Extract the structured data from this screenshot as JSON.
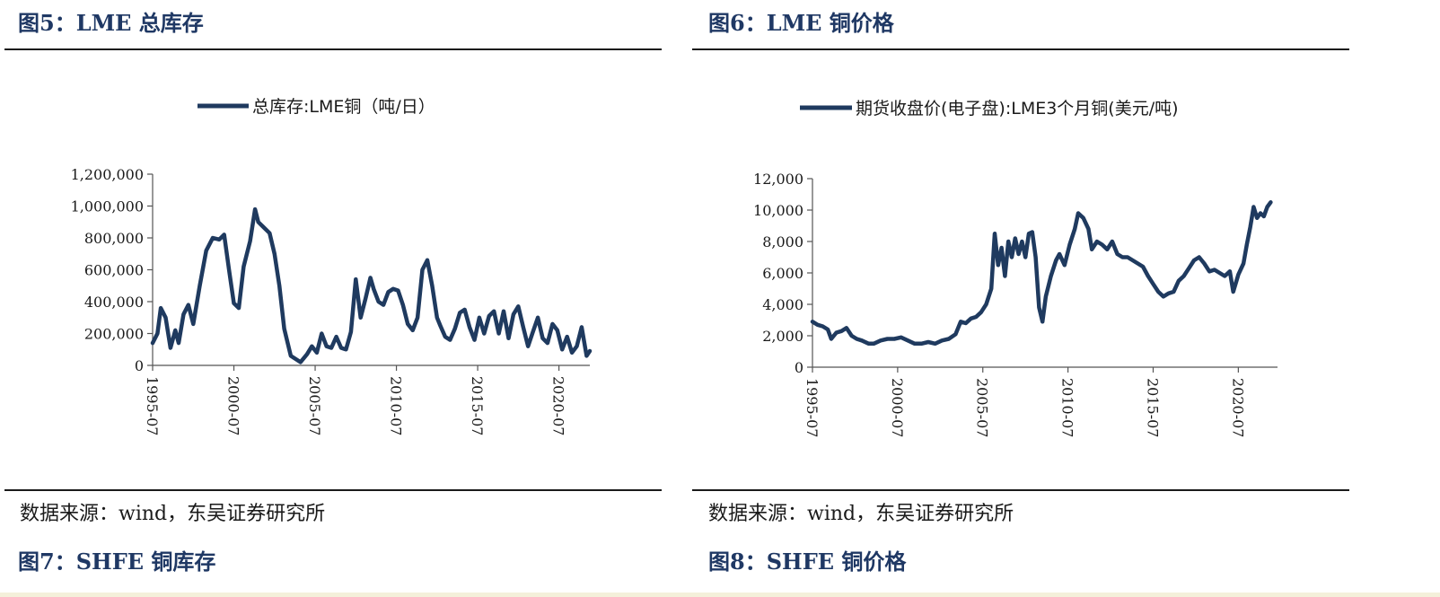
{
  "figures": [
    {
      "title": "图5：LME 总库存",
      "source": "数据来源：wind，东吴证券研究所"
    },
    {
      "title": "图6：LME 铜价格",
      "source": "数据来源：wind，东吴证券研究所"
    }
  ],
  "next_titles": [
    "图7：SHFE 铜库存",
    "图8：SHFE 铜价格"
  ],
  "series_color": "#1f3a5f",
  "chart_data": [
    {
      "type": "line",
      "title": "",
      "xlabel": "",
      "ylabel": "",
      "legend": "top-center",
      "grid": false,
      "ylim": [
        0,
        1200000
      ],
      "yticks": [
        0,
        200000,
        400000,
        600000,
        800000,
        1000000,
        1200000
      ],
      "ytick_labels": [
        "0",
        "200,000",
        "400,000",
        "600,000",
        "800,000",
        "1,000,000",
        "1,200,000"
      ],
      "xlim": [
        1995.5,
        2022.4
      ],
      "xticks": [
        1995.5,
        2000.5,
        2005.5,
        2010.5,
        2015.5,
        2020.5
      ],
      "xtick_labels": [
        "1995-07",
        "2000-07",
        "2005-07",
        "2010-07",
        "2015-07",
        "2020-07"
      ],
      "series": [
        {
          "name": "总库存:LME铜（吨/日）",
          "x": [
            1995.5,
            1995.8,
            1996.0,
            1996.3,
            1996.6,
            1996.9,
            1997.1,
            1997.4,
            1997.7,
            1998.0,
            1998.4,
            1998.8,
            1999.2,
            1999.6,
            1999.9,
            2000.2,
            2000.5,
            2000.8,
            2001.1,
            2001.5,
            2001.8,
            2002.0,
            2002.3,
            2002.7,
            2003.0,
            2003.3,
            2003.6,
            2004.0,
            2004.3,
            2004.6,
            2005.0,
            2005.3,
            2005.6,
            2005.9,
            2006.2,
            2006.5,
            2006.8,
            2007.1,
            2007.4,
            2007.7,
            2008.0,
            2008.3,
            2008.6,
            2008.9,
            2009.1,
            2009.4,
            2009.7,
            2010.0,
            2010.3,
            2010.6,
            2010.9,
            2011.2,
            2011.5,
            2011.8,
            2012.1,
            2012.4,
            2012.7,
            2013.0,
            2013.2,
            2013.5,
            2013.8,
            2014.1,
            2014.4,
            2014.7,
            2015.0,
            2015.3,
            2015.6,
            2015.9,
            2016.2,
            2016.5,
            2016.8,
            2017.1,
            2017.4,
            2017.7,
            2018.0,
            2018.3,
            2018.6,
            2018.9,
            2019.2,
            2019.5,
            2019.8,
            2020.1,
            2020.4,
            2020.7,
            2021.0,
            2021.3,
            2021.6,
            2021.9,
            2022.2,
            2022.4
          ],
          "values": [
            140000,
            200000,
            360000,
            300000,
            110000,
            220000,
            140000,
            320000,
            380000,
            260000,
            500000,
            720000,
            800000,
            790000,
            820000,
            600000,
            390000,
            360000,
            620000,
            780000,
            980000,
            900000,
            870000,
            830000,
            700000,
            500000,
            230000,
            60000,
            40000,
            20000,
            70000,
            120000,
            80000,
            200000,
            120000,
            110000,
            180000,
            110000,
            100000,
            210000,
            540000,
            300000,
            420000,
            550000,
            480000,
            400000,
            380000,
            460000,
            480000,
            470000,
            380000,
            260000,
            220000,
            300000,
            600000,
            660000,
            500000,
            300000,
            250000,
            180000,
            160000,
            230000,
            330000,
            350000,
            240000,
            160000,
            300000,
            200000,
            310000,
            340000,
            200000,
            340000,
            170000,
            320000,
            370000,
            240000,
            120000,
            210000,
            300000,
            170000,
            140000,
            260000,
            220000,
            100000,
            180000,
            80000,
            120000,
            240000,
            60000,
            90000
          ]
        }
      ]
    },
    {
      "type": "line",
      "title": "",
      "xlabel": "",
      "ylabel": "",
      "legend": "top-center",
      "grid": false,
      "ylim": [
        0,
        12000
      ],
      "yticks": [
        0,
        2000,
        4000,
        6000,
        8000,
        10000,
        12000
      ],
      "ytick_labels": [
        "0",
        "2,000",
        "4,000",
        "6,000",
        "8,000",
        "10,000",
        "12,000"
      ],
      "xlim": [
        1995.5,
        2022.8
      ],
      "xticks": [
        1995.5,
        2000.5,
        2005.5,
        2010.5,
        2015.5,
        2020.5
      ],
      "xtick_labels": [
        "1995-07",
        "2000-07",
        "2005-07",
        "2010-07",
        "2015-07",
        "2020-07"
      ],
      "series": [
        {
          "name": "期货收盘价(电子盘):LME3个月铜(美元/吨)",
          "x": [
            1995.5,
            1995.8,
            1996.1,
            1996.4,
            1996.6,
            1996.9,
            1997.2,
            1997.5,
            1997.8,
            1998.1,
            1998.4,
            1998.8,
            1999.1,
            1999.5,
            1999.9,
            2000.3,
            2000.7,
            2001.1,
            2001.5,
            2001.9,
            2002.3,
            2002.7,
            2003.1,
            2003.5,
            2003.9,
            2004.2,
            2004.5,
            2004.8,
            2005.1,
            2005.4,
            2005.7,
            2006.0,
            2006.2,
            2006.4,
            2006.6,
            2006.8,
            2007.0,
            2007.2,
            2007.4,
            2007.6,
            2007.8,
            2008.0,
            2008.2,
            2008.4,
            2008.6,
            2008.8,
            2009.0,
            2009.2,
            2009.5,
            2009.8,
            2010.0,
            2010.3,
            2010.6,
            2010.9,
            2011.1,
            2011.4,
            2011.7,
            2011.9,
            2012.2,
            2012.5,
            2012.8,
            2013.1,
            2013.4,
            2013.7,
            2014.0,
            2014.3,
            2014.6,
            2014.9,
            2015.2,
            2015.5,
            2015.8,
            2016.1,
            2016.4,
            2016.7,
            2017.0,
            2017.3,
            2017.6,
            2017.9,
            2018.2,
            2018.5,
            2018.8,
            2019.1,
            2019.4,
            2019.7,
            2020.0,
            2020.2,
            2020.5,
            2020.8,
            2021.0,
            2021.2,
            2021.4,
            2021.6,
            2021.8,
            2022.0,
            2022.2,
            2022.4
          ],
          "values": [
            2900,
            2700,
            2600,
            2400,
            1800,
            2200,
            2300,
            2500,
            2000,
            1800,
            1700,
            1500,
            1500,
            1700,
            1800,
            1800,
            1900,
            1700,
            1500,
            1500,
            1600,
            1500,
            1700,
            1800,
            2100,
            2900,
            2800,
            3100,
            3200,
            3500,
            4000,
            5000,
            8500,
            6500,
            7600,
            5800,
            8000,
            7000,
            8200,
            7200,
            8000,
            7000,
            8500,
            8600,
            7000,
            3800,
            2900,
            4500,
            5800,
            6800,
            7200,
            6500,
            7800,
            8800,
            9800,
            9500,
            8800,
            7500,
            8000,
            7800,
            7500,
            8000,
            7200,
            7000,
            7000,
            6800,
            6600,
            6400,
            5800,
            5300,
            4800,
            4500,
            4700,
            4800,
            5500,
            5800,
            6300,
            6800,
            7000,
            6600,
            6100,
            6200,
            6000,
            5800,
            6100,
            4800,
            5900,
            6600,
            7800,
            8900,
            10200,
            9500,
            9800,
            9600,
            10200,
            10500
          ]
        }
      ]
    }
  ]
}
